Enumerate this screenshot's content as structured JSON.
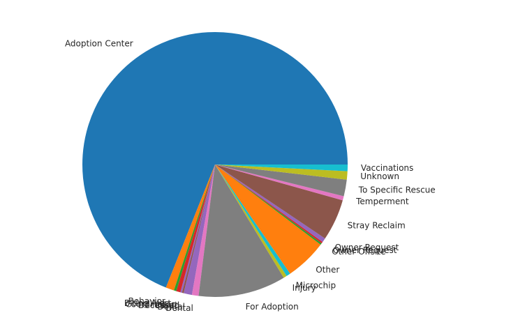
{
  "chart_data": {
    "type": "pie",
    "title": "",
    "legend": "none",
    "start_angle_deg": 0,
    "direction": "counterclockwise",
    "slices": [
      {
        "label": "Adoption Center",
        "value": 68.0,
        "color": "#1f77b4"
      },
      {
        "label": "Behavior",
        "value": 1.0,
        "color": "#ff7f0e"
      },
      {
        "label": "Biting Alert",
        "value": 0.3,
        "color": "#2ca02c"
      },
      {
        "label": "Coordinator",
        "value": 0.5,
        "color": "#d62728"
      },
      {
        "label": "Court",
        "value": 0.2,
        "color": "#9467bd"
      },
      {
        "label": "Deceased",
        "value": 0.2,
        "color": "#8c564b"
      },
      {
        "label": "Dental",
        "value": 1.0,
        "color": "#9467bd"
      },
      {
        "label": "Dental",
        "value": 0.8,
        "color": "#e377c2"
      },
      {
        "label": "For Adoption",
        "value": 10.5,
        "color": "#7f7f7f"
      },
      {
        "label": "Injury",
        "value": 0.4,
        "color": "#bcbd22"
      },
      {
        "label": "Microchip",
        "value": 0.5,
        "color": "#17becf"
      },
      {
        "label": "Other",
        "value": 5.0,
        "color": "#ff7f0e"
      },
      {
        "label": "Other Offsite",
        "value": 0.2,
        "color": "#2ca02c"
      },
      {
        "label": "Owner Request",
        "value": 0.2,
        "color": "#d62728"
      },
      {
        "label": "Owner Request",
        "value": 0.5,
        "color": "#9467bd"
      },
      {
        "label": "Stray Reclaim",
        "value": 5.0,
        "color": "#8c564b"
      },
      {
        "label": "Temperment",
        "value": 0.5,
        "color": "#e377c2"
      },
      {
        "label": "To Specific Rescue",
        "value": 2.0,
        "color": "#7f7f7f"
      },
      {
        "label": "Unknown",
        "value": 1.0,
        "color": "#bcbd22"
      },
      {
        "label": "Vaccinations",
        "value": 0.8,
        "color": "#17becf"
      }
    ]
  }
}
